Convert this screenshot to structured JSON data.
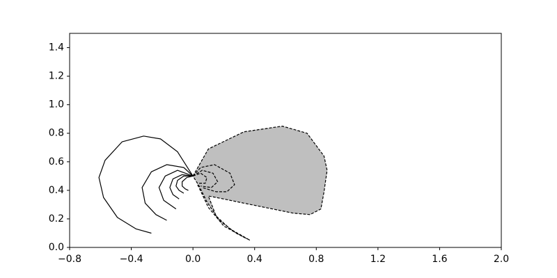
{
  "chart_data": {
    "type": "contour",
    "xlim": [
      -0.8,
      2.0
    ],
    "ylim": [
      0,
      1.5
    ],
    "xticks": [
      {
        "value": -0.8,
        "label": "−0.8"
      },
      {
        "value": -0.4,
        "label": "−0.4"
      },
      {
        "value": 0,
        "label": "0.0"
      },
      0.4,
      0.8,
      1.2,
      1.6,
      {
        "value": 2,
        "label": "2.0"
      }
    ],
    "yticks": [
      {
        "value": 0,
        "label": "0.0"
      },
      0.2,
      0.4,
      0.6,
      0.8,
      {
        "value": 1,
        "label": "1.0"
      },
      1.2,
      1.4
    ],
    "series": [
      {
        "style": "dashed",
        "color": "#000000",
        "fill": "#bfbfbf",
        "x": [
          0,
          0.1,
          0.33,
          0.58,
          0.74,
          0.85,
          0.87,
          0.85,
          0.83,
          0.76,
          0.65,
          0.33,
          0.15,
          0.1,
          0.15,
          0.24,
          0.37,
          0.28,
          0.17,
          0.09,
          0.04,
          0
        ],
        "y": [
          0.5,
          0.69,
          0.81,
          0.85,
          0.8,
          0.64,
          0.54,
          0.39,
          0.27,
          0.23,
          0.24,
          0.31,
          0.35,
          0.36,
          0.22,
          0.13,
          0.05,
          0.1,
          0.19,
          0.32,
          0.43,
          0.5
        ]
      },
      {
        "style": "dashed",
        "color": "#000000",
        "x": [
          0,
          0.05,
          0.14,
          0.24,
          0.27,
          0.22,
          0.15,
          0.06
        ],
        "y": [
          0.5,
          0.56,
          0.58,
          0.52,
          0.44,
          0.39,
          0.39,
          0.42
        ]
      },
      {
        "style": "dashed",
        "color": "#000000",
        "x": [
          0,
          0.06,
          0.13,
          0.16,
          0.12,
          0.05
        ],
        "y": [
          0.5,
          0.54,
          0.52,
          0.46,
          0.42,
          0.43
        ]
      },
      {
        "style": "dashed",
        "color": "#000000",
        "x": [
          0,
          0.05,
          0.09,
          0.08,
          0.04
        ],
        "y": [
          0.5,
          0.52,
          0.49,
          0.45,
          0.45
        ]
      },
      {
        "style": "dashed",
        "color": "#000000",
        "x": [
          0.03,
          0.1,
          0.2,
          0.35
        ],
        "y": [
          0.44,
          0.28,
          0.15,
          0.06
        ]
      },
      {
        "style": "solid",
        "color": "#000000",
        "x": [
          0,
          -0.1,
          -0.21,
          -0.32,
          -0.46,
          -0.57,
          -0.61,
          -0.58,
          -0.49,
          -0.37,
          -0.27
        ],
        "y": [
          0.5,
          0.67,
          0.76,
          0.78,
          0.74,
          0.61,
          0.49,
          0.35,
          0.21,
          0.13,
          0.1
        ]
      },
      {
        "style": "solid",
        "color": "#000000",
        "x": [
          0,
          -0.06,
          -0.17,
          -0.27,
          -0.33,
          -0.31,
          -0.24,
          -0.17
        ],
        "y": [
          0.5,
          0.56,
          0.58,
          0.53,
          0.42,
          0.31,
          0.23,
          0.19
        ]
      },
      {
        "style": "solid",
        "color": "#000000",
        "x": [
          0,
          -0.1,
          -0.18,
          -0.22,
          -0.19,
          -0.11
        ],
        "y": [
          0.5,
          0.54,
          0.5,
          0.42,
          0.33,
          0.27
        ]
      },
      {
        "style": "solid",
        "color": "#000000",
        "x": [
          0,
          -0.07,
          -0.13,
          -0.15,
          -0.13,
          -0.09
        ],
        "y": [
          0.5,
          0.51,
          0.48,
          0.42,
          0.37,
          0.34
        ]
      },
      {
        "style": "solid",
        "color": "#000000",
        "x": [
          0,
          -0.06,
          -0.1,
          -0.11,
          -0.09,
          -0.06
        ],
        "y": [
          0.5,
          0.5,
          0.47,
          0.43,
          0.4,
          0.38
        ]
      },
      {
        "style": "solid",
        "color": "#000000",
        "x": [
          0,
          -0.04,
          -0.07,
          -0.07,
          -0.05,
          -0.03
        ],
        "y": [
          0.5,
          0.49,
          0.46,
          0.43,
          0.41,
          0.4
        ]
      }
    ]
  }
}
